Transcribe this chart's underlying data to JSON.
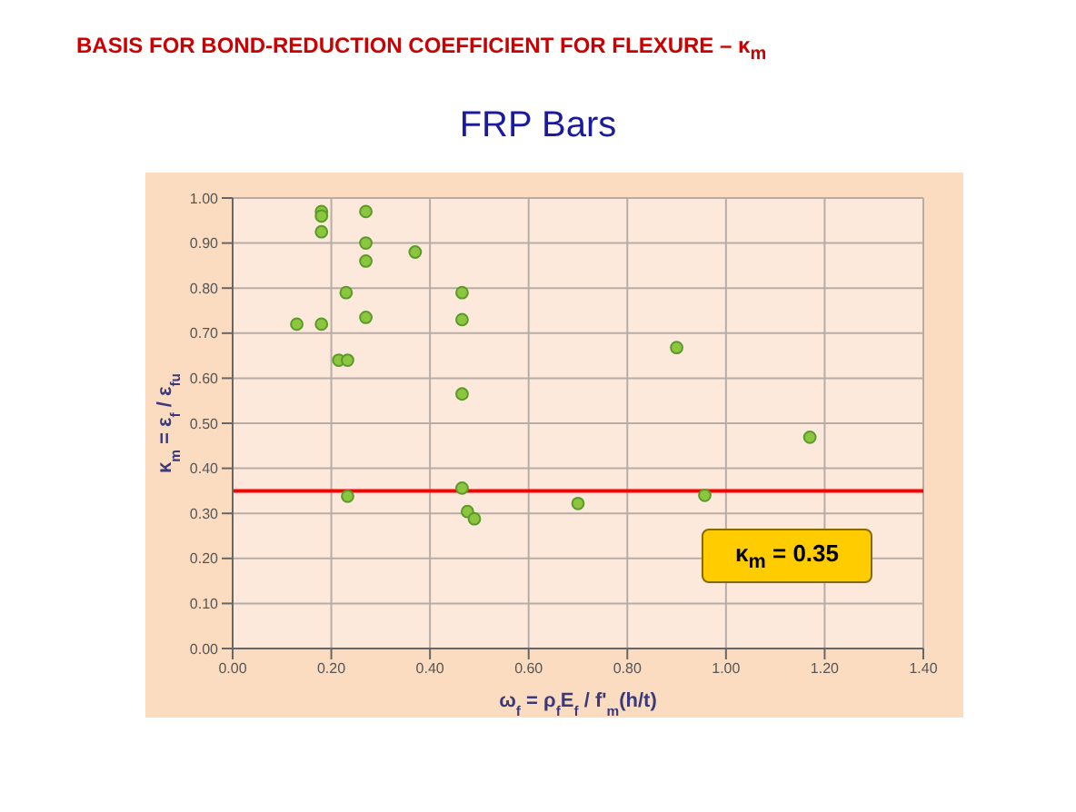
{
  "chart_data": {
    "type": "scatter",
    "title": "BASIS FOR BOND-REDUCTION COEFFICIENT FOR FLEXURE – κ$_{m}$",
    "subtitle": "FRP Bars",
    "xlabel": "ω$_{f}$ = ρ$_{f}$E$_{f}$ / f'$_{m}$(h/t)",
    "ylabel": "κ$_{m}$ = ε$_{f}$ / ε$_{fu}$",
    "x": [
      0.18,
      0.18,
      0.18,
      0.27,
      0.27,
      0.27,
      0.37,
      0.23,
      0.465,
      0.27,
      0.465,
      0.13,
      0.18,
      0.215,
      0.233,
      0.465,
      0.233,
      0.465,
      0.476,
      0.49,
      0.7,
      0.9,
      1.17,
      0.957
    ],
    "values": [
      0.97,
      0.96,
      0.925,
      0.97,
      0.9,
      0.86,
      0.88,
      0.79,
      0.79,
      0.735,
      0.73,
      0.72,
      0.72,
      0.64,
      0.64,
      0.565,
      0.338,
      0.356,
      0.304,
      0.288,
      0.322,
      0.668,
      0.469,
      0.34
    ],
    "color": "#8cc63e",
    "marker": "circle",
    "xlim": [
      0,
      1.4
    ],
    "xticks": [
      {
        "value": 0,
        "label": "0.00"
      },
      {
        "value": 0.2,
        "label": "0.20"
      },
      {
        "value": 0.4,
        "label": "0.40"
      },
      {
        "value": 0.6,
        "label": "0.60"
      },
      {
        "value": 0.8,
        "label": "0.80"
      },
      {
        "value": 1,
        "label": "1.00"
      },
      {
        "value": 1.2,
        "label": "1.20"
      },
      {
        "value": 1.4,
        "label": "1.40"
      }
    ],
    "ylim": [
      0,
      1
    ],
    "yticks": [
      {
        "value": 0,
        "label": "0.00"
      },
      {
        "value": 0.1,
        "label": "0.10"
      },
      {
        "value": 0.2,
        "label": "0.20"
      },
      {
        "value": 0.3,
        "label": "0.30"
      },
      {
        "value": 0.4,
        "label": "0.40"
      },
      {
        "value": 0.5,
        "label": "0.50"
      },
      {
        "value": 0.6,
        "label": "0.60"
      },
      {
        "value": 0.7,
        "label": "0.70"
      },
      {
        "value": 0.8,
        "label": "0.80"
      },
      {
        "value": 0.9,
        "label": "0.90"
      },
      {
        "value": 1,
        "label": "1.00"
      }
    ],
    "ref_lines": [
      {
        "axis": "y",
        "value": 0.35,
        "color": "#ff0000"
      }
    ],
    "annotations": [
      "κ$_{m}$ = 0.35"
    ],
    "grid": true
  }
}
